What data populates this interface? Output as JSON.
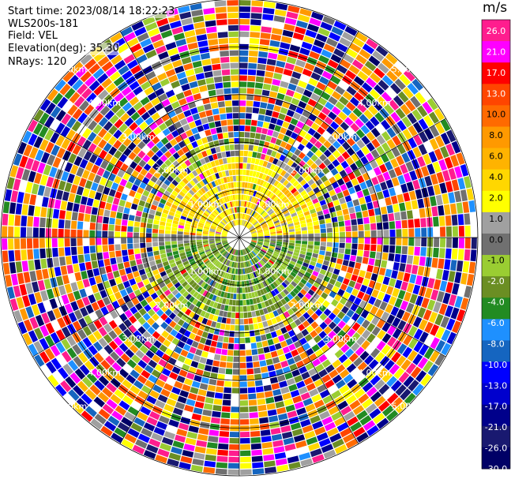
{
  "header": {
    "start_time": "Start time: 2023/08/14 18:22:23",
    "site": "WLS200s-181",
    "field": "Field: VEL",
    "elevation": "Elevation(deg): 35.30",
    "nrays": "NRays: 120"
  },
  "chart_data": {
    "type": "polar_ppi",
    "field": "VEL",
    "units": "m/s",
    "n_rays": 120,
    "max_range_km": 5.0,
    "range_rings_km": [
      1.0,
      2.0,
      3.0,
      4.0,
      5.0
    ],
    "ring_labels": [
      "1.00km",
      "2.00km",
      "3.00km",
      "4.00km",
      "5.00km"
    ],
    "spokes_deg": [
      0,
      30,
      60,
      90,
      120,
      150,
      180,
      210,
      240,
      270,
      300,
      330
    ],
    "colorbar": {
      "ticks": [
        "26.0",
        "21.0",
        "17.0",
        "13.0",
        "10.0",
        "8.0",
        "6.0",
        "4.0",
        "2.0",
        "1.0",
        "0.0",
        "-1.0",
        "-2.0",
        "-4.0",
        "-6.0",
        "-8.0",
        "-10.0",
        "-13.0",
        "-17.0",
        "-21.0",
        "-26.0",
        "-30.0"
      ],
      "colors": [
        "#ff1d8e",
        "#ff00ff",
        "#ff0000",
        "#ff4500",
        "#ff6a00",
        "#ff9900",
        "#ffb300",
        "#ffd700",
        "#ffff00",
        "#a0a0a0",
        "#707070",
        "#9acd32",
        "#6b8e23",
        "#228b22",
        "#1e90ff",
        "#1565c0",
        "#0000ff",
        "#0000cd",
        "#00008b",
        "#191970",
        "#000066"
      ]
    },
    "north_pattern": "positive velocities (yellow/orange, 0 to 6 m/s) within ~1.5 km",
    "south_pattern": "negative velocities (green/olive, -1 to -6 m/s) within ~1.5 km",
    "outer_pattern": "noisy random velocities beyond ~2 km"
  }
}
